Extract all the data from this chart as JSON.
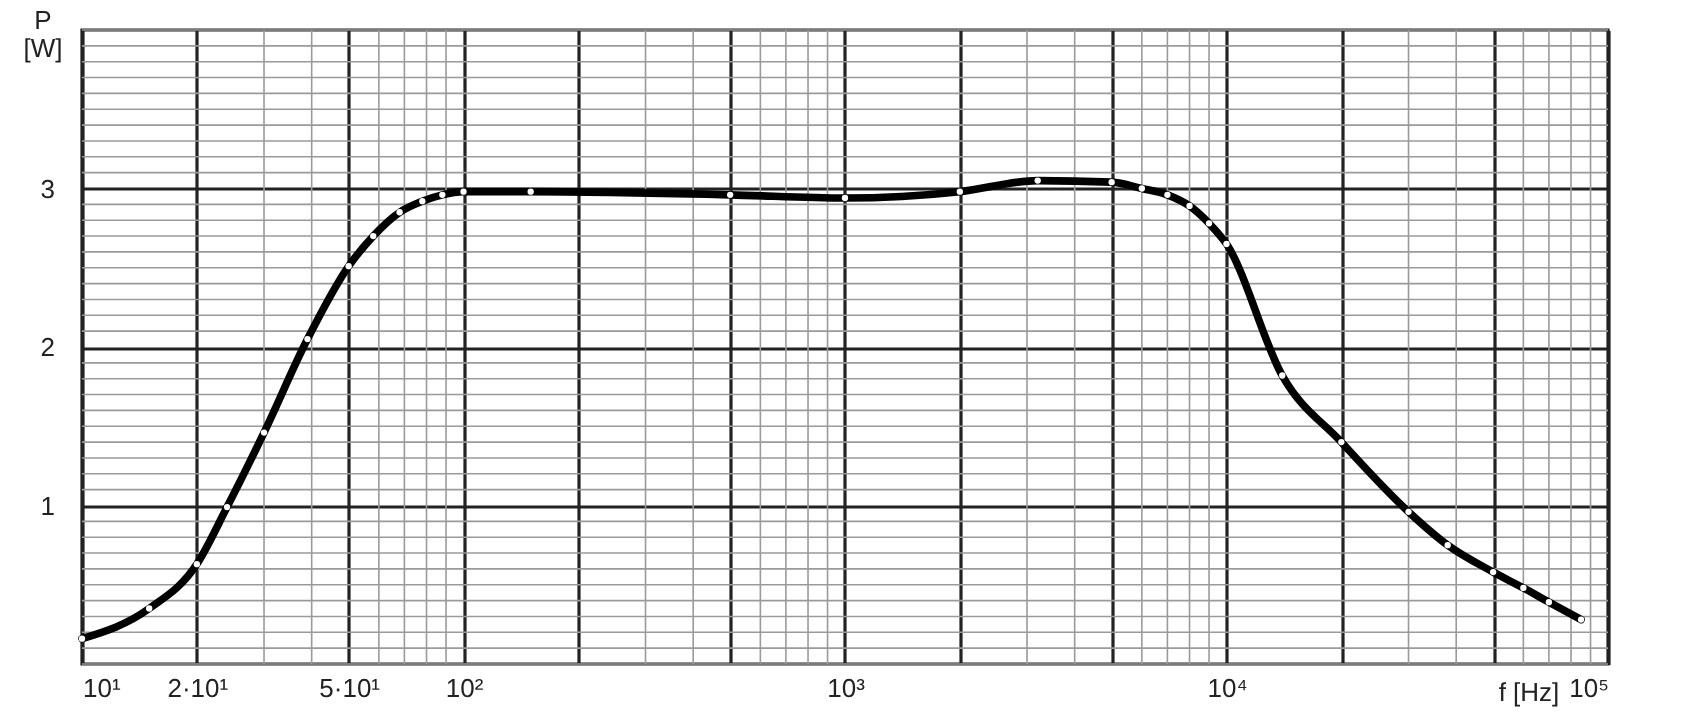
{
  "chart_data": {
    "type": "line",
    "xlabel": "f [Hz]",
    "ylabel": "P [W]",
    "x": [
      10,
      15,
      20,
      24,
      30,
      39,
      50,
      58,
      68,
      78,
      88,
      100,
      150,
      500,
      1000,
      2000,
      3200,
      5000,
      6000,
      7000,
      8000,
      9000,
      10000,
      14000,
      20000,
      30000,
      38000,
      50000,
      60000,
      70000,
      85000
    ],
    "series": [
      {
        "color": "#000000",
        "values": [
          0.16,
          0.35,
          0.63,
          0.99,
          1.46,
          2.05,
          2.51,
          2.7,
          2.85,
          2.92,
          2.96,
          2.98,
          2.98,
          2.96,
          2.94,
          2.98,
          3.05,
          3.04,
          3.0,
          2.96,
          2.89,
          2.78,
          2.65,
          1.82,
          1.4,
          0.96,
          0.75,
          0.58,
          0.48,
          0.39,
          0.28
        ]
      }
    ],
    "log": "x",
    "xlim": [
      10,
      100000
    ],
    "ylim": [
      0,
      4
    ],
    "xticks": [
      {
        "value": 10,
        "label": "10¹"
      },
      {
        "value": 20,
        "label": "2·10¹"
      },
      {
        "value": 50,
        "label": "5·10¹"
      },
      {
        "value": 100,
        "label": "10²"
      },
      {
        "value": 200,
        "label": null
      },
      {
        "value": 500,
        "label": null
      },
      {
        "value": 1000,
        "label": "10³"
      },
      {
        "value": 2000,
        "label": null
      },
      {
        "value": 5000,
        "label": null
      },
      {
        "value": 10000,
        "label": "10⁴"
      },
      {
        "value": 20000,
        "label": null
      },
      {
        "value": 50000,
        "label": null
      },
      {
        "value": 100000,
        "label": "10⁵"
      }
    ],
    "yticks": [
      1,
      2,
      3
    ],
    "grid": true,
    "marker": "circle",
    "line_style": "solid"
  }
}
